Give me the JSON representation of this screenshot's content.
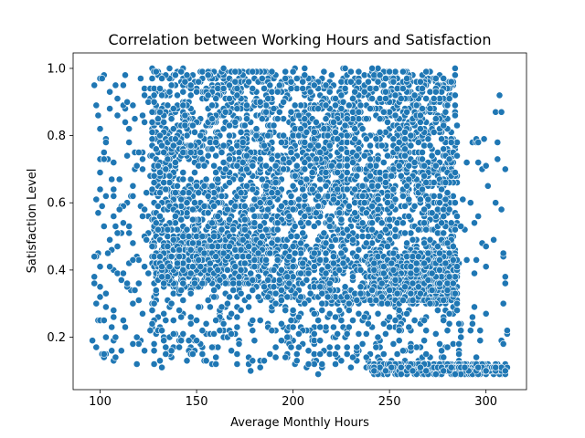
{
  "chart_data": {
    "type": "scatter",
    "title": "Correlation between Working Hours and Satisfaction",
    "xlabel": "Average Monthly Hours",
    "ylabel": "Satisfaction Level",
    "xlim": [
      86,
      321
    ],
    "ylim": [
      0.044,
      1.046
    ],
    "xticks": [
      100,
      150,
      200,
      250,
      300
    ],
    "yticks": [
      0.2,
      0.4,
      0.6,
      0.8,
      1.0
    ],
    "xtick_labels": [
      "100",
      "150",
      "200",
      "250",
      "300"
    ],
    "ytick_labels": [
      "0.2",
      "0.4",
      "0.6",
      "0.8",
      "1.0"
    ],
    "grid": false,
    "legend": "none",
    "marker_color": "#1f77b4",
    "marker_edge_color": "#ffffff",
    "regions": [
      {
        "x": [
          96,
          130
        ],
        "y": [
          0.12,
          1.0
        ],
        "density": "sparse"
      },
      {
        "x": [
          127,
          285
        ],
        "y": [
          0.45,
          1.0
        ],
        "density": "very dense"
      },
      {
        "x": [
          127,
          185
        ],
        "y": [
          0.35,
          0.5
        ],
        "density": "dense"
      },
      {
        "x": [
          127,
          287
        ],
        "y": [
          0.11,
          0.45
        ],
        "density": "moderate"
      },
      {
        "x": [
          185,
          240
        ],
        "y": [
          0.3,
          0.45
        ],
        "density": "sparse"
      },
      {
        "x": [
          240,
          285
        ],
        "y": [
          0.3,
          0.45
        ],
        "density": "moderate"
      },
      {
        "x": [
          240,
          311
        ],
        "y": [
          0.09,
          0.12
        ],
        "density": "dense band"
      },
      {
        "x": [
          285,
          311
        ],
        "y": [
          0.12,
          0.9
        ],
        "density": "very sparse"
      }
    ],
    "outliers": [
      {
        "x": 307,
        "y": 0.92
      },
      {
        "x": 305,
        "y": 0.87
      },
      {
        "x": 308,
        "y": 0.87
      },
      {
        "x": 295,
        "y": 0.79
      },
      {
        "x": 296,
        "y": 0.78
      },
      {
        "x": 300,
        "y": 0.71
      },
      {
        "x": 310,
        "y": 0.7
      },
      {
        "x": 296,
        "y": 0.56
      },
      {
        "x": 294,
        "y": 0.54
      },
      {
        "x": 300,
        "y": 0.41
      },
      {
        "x": 294,
        "y": 0.39
      },
      {
        "x": 310,
        "y": 0.36
      },
      {
        "x": 309,
        "y": 0.3
      },
      {
        "x": 300,
        "y": 0.27
      },
      {
        "x": 292,
        "y": 0.22
      },
      {
        "x": 178,
        "y": 0.1
      },
      {
        "x": 213,
        "y": 0.09
      }
    ]
  }
}
